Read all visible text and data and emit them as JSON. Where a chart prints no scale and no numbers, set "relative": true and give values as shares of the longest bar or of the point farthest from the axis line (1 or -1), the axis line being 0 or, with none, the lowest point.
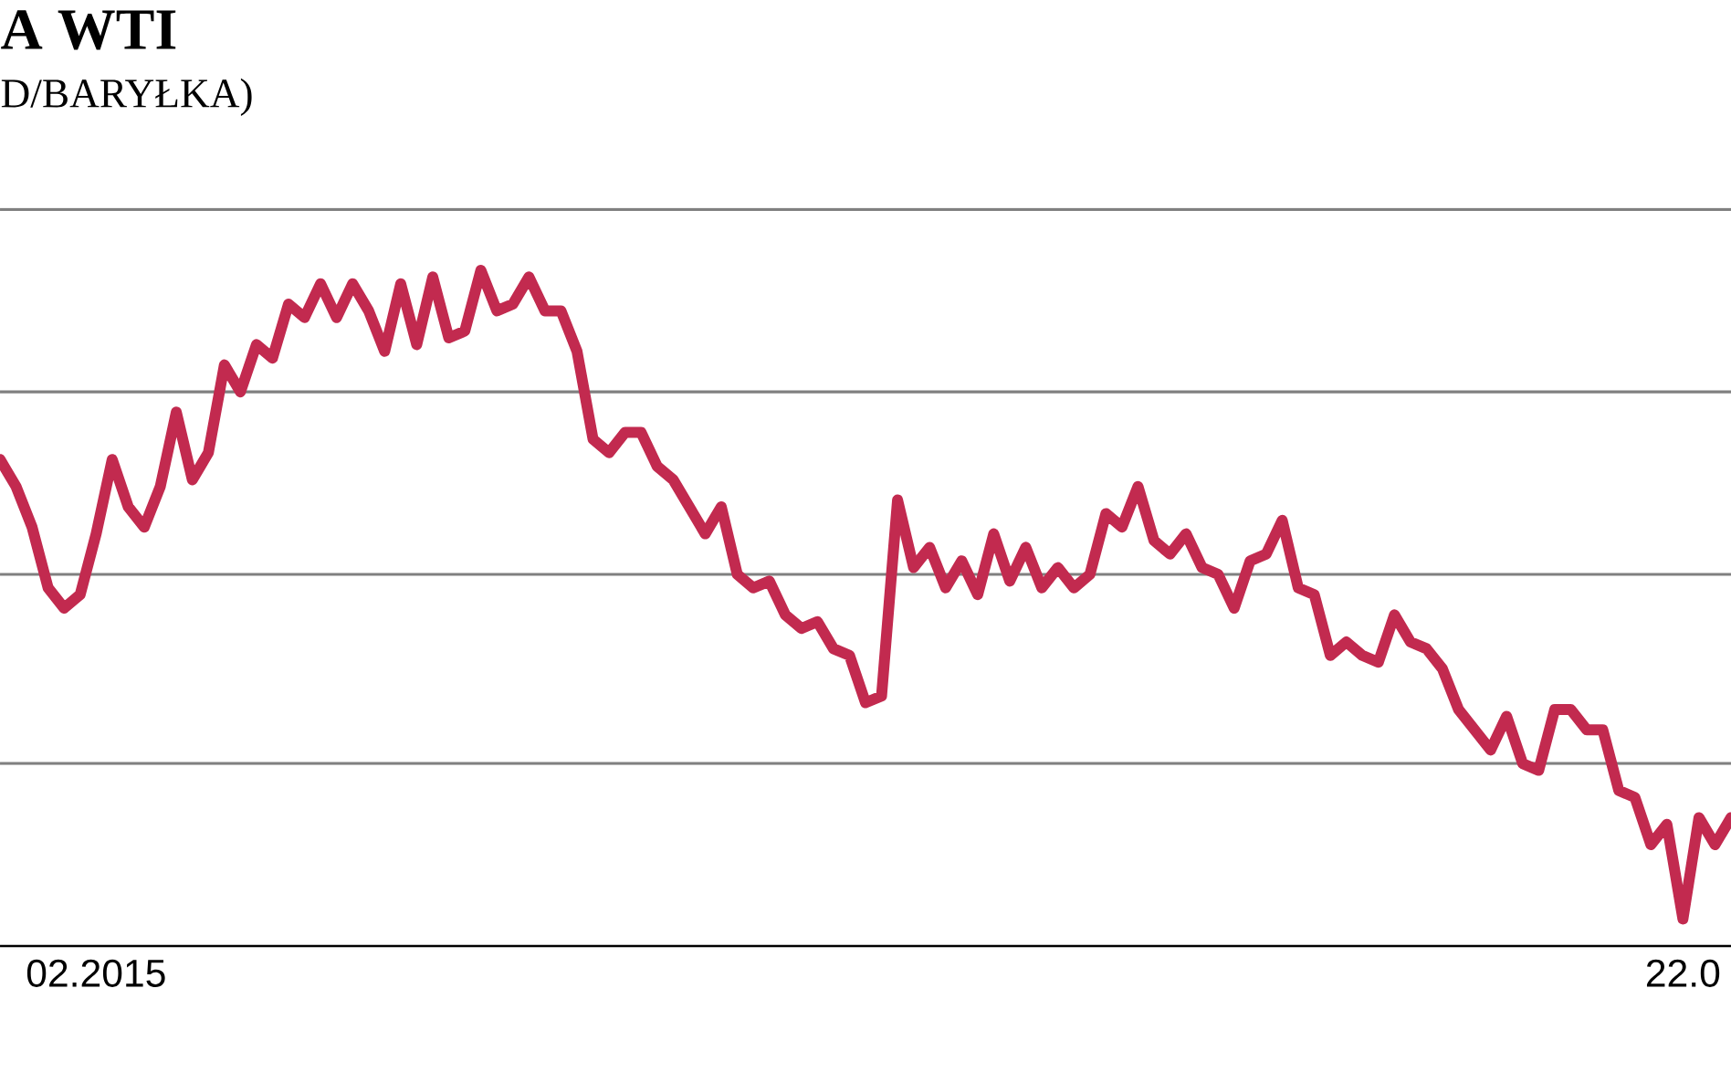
{
  "chart_data": {
    "type": "line",
    "title": "A WTI",
    "subtitle": "D/BARYŁKA)",
    "relative": true,
    "categories": [
      null,
      null,
      null,
      null,
      null,
      null,
      "02.2015",
      null,
      null,
      null,
      null,
      null,
      null,
      null,
      null,
      null,
      null,
      null,
      null,
      null,
      null,
      null,
      null,
      null,
      null,
      null,
      null,
      null,
      null,
      null,
      null,
      null,
      null,
      null,
      null,
      null,
      null,
      null,
      null,
      null,
      null,
      null,
      null,
      null,
      null,
      null,
      null,
      null,
      null,
      null,
      null,
      null,
      null,
      null,
      null,
      null,
      null,
      null,
      null,
      null,
      null,
      null,
      null,
      null,
      null,
      null,
      null,
      null,
      null,
      null,
      null,
      null,
      null,
      null,
      null,
      null,
      null,
      null,
      null,
      null,
      null,
      null,
      null,
      null,
      null,
      null,
      null,
      null,
      null,
      null,
      null,
      null,
      null,
      null,
      null,
      null,
      null,
      null,
      null,
      null,
      null,
      null,
      null,
      null,
      null,
      "22.0",
      null,
      null,
      null
    ],
    "series": [
      {
        "color": "#c22a4f",
        "values": [
          0.72,
          0.68,
          0.62,
          0.53,
          0.5,
          0.52,
          0.61,
          0.72,
          0.65,
          0.62,
          0.68,
          0.79,
          0.69,
          0.73,
          0.86,
          0.82,
          0.89,
          0.87,
          0.95,
          0.93,
          0.98,
          0.93,
          0.98,
          0.94,
          0.88,
          0.98,
          0.89,
          0.99,
          0.9,
          0.91,
          1.0,
          0.94,
          0.95,
          0.99,
          0.94,
          0.94,
          0.88,
          0.75,
          0.73,
          0.76,
          0.76,
          0.71,
          0.69,
          0.65,
          0.61,
          0.65,
          0.55,
          0.53,
          0.54,
          0.49,
          0.47,
          0.48,
          0.44,
          0.43,
          0.36,
          0.37,
          0.66,
          0.56,
          0.59,
          0.53,
          0.57,
          0.52,
          0.61,
          0.54,
          0.59,
          0.53,
          0.56,
          0.53,
          0.55,
          0.64,
          0.62,
          0.68,
          0.6,
          0.58,
          0.61,
          0.56,
          0.55,
          0.5,
          0.57,
          0.58,
          0.63,
          0.53,
          0.52,
          0.43,
          0.45,
          0.43,
          0.42,
          0.49,
          0.45,
          0.44,
          0.41,
          0.35,
          0.32,
          0.29,
          0.34,
          0.27,
          0.26,
          0.35,
          0.35,
          0.32,
          0.32,
          0.23,
          0.22,
          0.15,
          0.18,
          0.04,
          0.19,
          0.15,
          0.19
        ]
      }
    ],
    "ref_lines": [
      {
        "axis": "y",
        "value": 0.27,
        "color": "#808080"
      },
      {
        "axis": "y",
        "value": 0.55,
        "color": "#808080"
      },
      {
        "axis": "y",
        "value": 0.82,
        "color": "#808080"
      },
      {
        "axis": "y",
        "value": 1.09,
        "color": "#808080"
      }
    ]
  }
}
